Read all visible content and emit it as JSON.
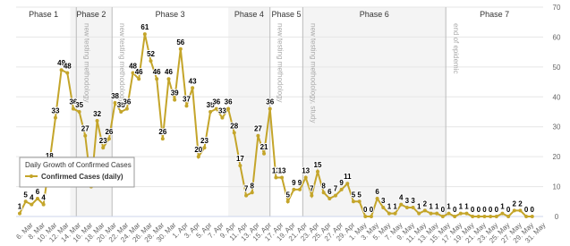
{
  "chart_data": {
    "type": "line",
    "legend_title": "Daily Growth of Confirmed Cases",
    "categories": [
      null,
      null,
      "6. Mar",
      null,
      "8. Mar",
      null,
      "10. Mar",
      null,
      "12. Mar",
      null,
      "14. Mar",
      null,
      "16. Mar",
      null,
      "18. Mar",
      null,
      "20. Mar",
      null,
      "22. Mar",
      null,
      "24. Mar",
      null,
      "26. Mar",
      null,
      "28. Mar",
      null,
      "30. Mar",
      null,
      "1. Apr",
      null,
      "3. Apr",
      null,
      "5. Apr",
      null,
      "7. Apr",
      null,
      "9. Apr",
      null,
      "11. Apr",
      null,
      "13. Apr",
      null,
      "15. Apr",
      null,
      "17. Apr",
      null,
      "19. Apr",
      null,
      "21. Apr",
      null,
      "23. Apr",
      null,
      "25. Apr",
      null,
      "27. Apr",
      null,
      "29. Apr",
      null,
      "1. May",
      null,
      "3. May",
      null,
      "5. May",
      null,
      "7. May",
      null,
      "9. May",
      null,
      "11. May",
      null,
      "13. May",
      null,
      "15. May",
      null,
      "17. May",
      null,
      "19. May",
      null,
      "21. May",
      null,
      "23. May",
      null,
      "25. May",
      null,
      "27. May",
      null,
      "29. May",
      null,
      "31. May"
    ],
    "series": [
      {
        "name": "Confirmed Cases (daily)",
        "color": "#c4a52a",
        "values": [
          1,
          5,
          4,
          6,
          4,
          18,
          33,
          49,
          48,
          36,
          35,
          27,
          10,
          32,
          23,
          26,
          38,
          35,
          36,
          48,
          46,
          61,
          52,
          46,
          26,
          46,
          39,
          56,
          37,
          43,
          20,
          23,
          35,
          36,
          33,
          36,
          28,
          17,
          7,
          8,
          27,
          21,
          36,
          13,
          13,
          5,
          9,
          9,
          13,
          7,
          15,
          8,
          6,
          7,
          9,
          11,
          5,
          5,
          0,
          0,
          6,
          3,
          1,
          1,
          4,
          3,
          3,
          1,
          2,
          1,
          1,
          0,
          1,
          0,
          1,
          1,
          0,
          0,
          0,
          0,
          0,
          1,
          0,
          2,
          2,
          0,
          0,
          null,
          null
        ]
      }
    ],
    "ylim": [
      0,
      70
    ],
    "yticks": [
      0,
      10,
      20,
      30,
      40,
      50,
      60,
      70
    ],
    "grid": true,
    "phases": [
      {
        "label": "Phase 1",
        "from": -0.5,
        "to": 8.5
      },
      {
        "label": "Phase 2",
        "from": 8.5,
        "to": 15.5
      },
      {
        "label": "Phase 3",
        "from": 15.5,
        "to": 35
      },
      {
        "label": "Phase 4",
        "from": 35,
        "to": 42
      },
      {
        "label": "Phase 5",
        "from": 42,
        "to": 47.5
      },
      {
        "label": "Phase 6",
        "from": 47.5,
        "to": 71.5
      },
      {
        "label": "Phase 7",
        "from": 71.5,
        "to": 88.5
      }
    ],
    "annotations": [
      {
        "x": 9.5,
        "label": "new testing methodology"
      },
      {
        "x": 15.5,
        "label": "new testing methodology"
      },
      {
        "x": 42,
        "label": "new testing methodology"
      },
      {
        "x": 47.5,
        "label": "new testing methodology, study"
      },
      {
        "x": 71.5,
        "label": "end of epidemic"
      }
    ]
  }
}
